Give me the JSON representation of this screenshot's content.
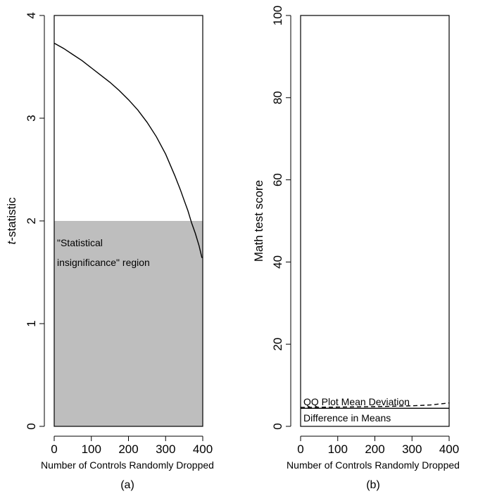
{
  "chart_data": [
    {
      "panel_label": "(a)",
      "type": "line",
      "xlabel": "Number of Controls Randomly Dropped",
      "ylabel_italic": "t",
      "ylabel_rest": "-statistic",
      "xlim": [
        0,
        400
      ],
      "ylim": [
        0,
        4
      ],
      "x_ticks": [
        0,
        100,
        200,
        300,
        400
      ],
      "y_ticks": [
        0,
        1,
        2,
        3,
        4
      ],
      "shaded_region": {
        "y_from": 0,
        "y_to": 2,
        "color": "#bebebe",
        "label_line1": "\"Statistical",
        "label_line2": "insignificance\" region"
      },
      "series": [
        {
          "color": "#000000",
          "x": [
            0,
            25,
            50,
            75,
            100,
            125,
            150,
            175,
            200,
            225,
            250,
            275,
            300,
            325,
            340,
            350,
            360,
            370,
            380,
            390,
            398
          ],
          "y": [
            3.73,
            3.68,
            3.62,
            3.56,
            3.49,
            3.42,
            3.35,
            3.27,
            3.18,
            3.08,
            2.96,
            2.82,
            2.65,
            2.44,
            2.3,
            2.2,
            2.1,
            1.98,
            1.88,
            1.76,
            1.64
          ]
        }
      ],
      "grid": false
    },
    {
      "panel_label": "(b)",
      "type": "line",
      "xlabel": "Number of Controls Randomly Dropped",
      "ylabel": "Math test score",
      "xlim": [
        0,
        400
      ],
      "ylim": [
        0,
        100
      ],
      "x_ticks": [
        0,
        100,
        200,
        300,
        400
      ],
      "y_ticks": [
        0,
        20,
        40,
        60,
        80,
        100
      ],
      "series": [
        {
          "name": "QQ Plot Mean Deviation",
          "style": "dashed",
          "color": "#000000",
          "x": [
            0,
            100,
            200,
            300,
            350,
            400
          ],
          "y": [
            4.6,
            4.7,
            4.8,
            5.0,
            5.2,
            5.7
          ]
        },
        {
          "name": "Difference in Means",
          "style": "solid",
          "color": "#000000",
          "x": [
            0,
            100,
            200,
            300,
            400
          ],
          "y": [
            4.4,
            4.4,
            4.4,
            4.4,
            4.4
          ]
        }
      ],
      "grid": false
    }
  ]
}
